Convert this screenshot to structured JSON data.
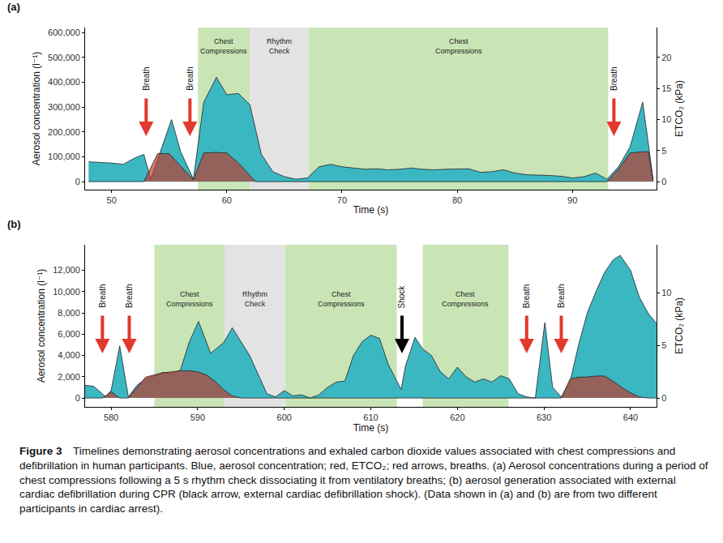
{
  "chart_data": [
    {
      "type": "area",
      "title": "(a)",
      "x_label": "Time (s)",
      "y_label": "Aerosol concentration (l⁻¹)",
      "y2_label": "ETCO₂ (kPa)",
      "xlim": [
        47.7,
        97.3
      ],
      "xticks": [
        50,
        60,
        70,
        80,
        90
      ],
      "ylim": [
        -32000,
        620000
      ],
      "yticks": [
        0,
        {
          "value": 100000,
          "label": "100,000"
        },
        {
          "value": 200000,
          "label": "200,000"
        },
        {
          "value": 300000,
          "label": "300,000"
        },
        {
          "value": 400000,
          "label": "400,000"
        },
        {
          "value": 500000,
          "label": "500,000"
        },
        {
          "value": 600000,
          "label": "600,000"
        }
      ],
      "y2lim": [
        -1.3,
        24.8
      ],
      "y2ticks": [
        0,
        5,
        10,
        15,
        20
      ],
      "grid": false,
      "series": [
        {
          "color": "#3bb7c2",
          "x": [
            48,
            50,
            51,
            52,
            52.8,
            53.4,
            55.2,
            56,
            57.1,
            58,
            59.1,
            60,
            61,
            62,
            63,
            64,
            65,
            66,
            67,
            68,
            69,
            70,
            71,
            72,
            73,
            74,
            75,
            76,
            77,
            78,
            79,
            80,
            81,
            82,
            83,
            84,
            85,
            86,
            87,
            88,
            89,
            90,
            91,
            92,
            93,
            94,
            95,
            96.1,
            96.6,
            97
          ],
          "values": [
            80000,
            75000,
            70000,
            95000,
            110000,
            10000,
            250000,
            120000,
            10000,
            320000,
            420000,
            350000,
            355000,
            310000,
            110000,
            40000,
            20000,
            10000,
            15000,
            60000,
            70000,
            60000,
            55000,
            50000,
            52000,
            48000,
            50000,
            55000,
            50000,
            48000,
            50000,
            50000,
            52000,
            38000,
            40000,
            48000,
            35000,
            28000,
            27000,
            25000,
            22000,
            15000,
            20000,
            35000,
            10000,
            60000,
            140000,
            320000,
            150000,
            10000
          ]
        },
        {
          "color": "#c0392b",
          "axis": "y2",
          "x": [
            48,
            52.8,
            54,
            55,
            56,
            57.1,
            58,
            59,
            60,
            61,
            62,
            62.5,
            93,
            94,
            95,
            96,
            96.6,
            97
          ],
          "values": [
            0,
            0,
            4.5,
            4.5,
            2.5,
            0.3,
            4.6,
            4.7,
            4.6,
            3,
            1,
            0,
            0,
            2,
            4.6,
            4.8,
            4.8,
            0
          ]
        }
      ],
      "annotations": [
        {
          "kind": "region",
          "x0": 57.5,
          "x1": 62,
          "text": "Chest Compressions",
          "color": "#c9e5b5"
        },
        {
          "kind": "region",
          "x0": 62,
          "x1": 67.1,
          "text": "Rhythm Check",
          "color": "#e3e3e3"
        },
        {
          "kind": "region",
          "x0": 67.1,
          "x1": 93.1,
          "text": "Chest Compressions",
          "color": "#c9e5b5"
        },
        {
          "kind": "arrow",
          "x": 53,
          "text": "Breath",
          "color": "#e2382e"
        },
        {
          "kind": "arrow",
          "x": 56.8,
          "text": "Breath",
          "color": "#e2382e"
        },
        {
          "kind": "arrow",
          "x": 93.6,
          "text": "Breath",
          "color": "#e2382e"
        }
      ]
    },
    {
      "type": "area",
      "title": "(b)",
      "x_label": "Time (s)",
      "y_label": "Aerosol concentration (l⁻¹)",
      "y2_label": "ETCO₂ (kPa)",
      "xlim": [
        577,
        643
      ],
      "xticks": [
        580,
        590,
        600,
        610,
        620,
        630,
        640
      ],
      "ylim": [
        -830,
        14400
      ],
      "yticks": [
        0,
        {
          "value": 2000,
          "label": "2,000"
        },
        {
          "value": 4000,
          "label": "4,000"
        },
        {
          "value": 6000,
          "label": "6,000"
        },
        {
          "value": 8000,
          "label": "8,000"
        },
        {
          "value": 10000,
          "label": "10,000"
        },
        {
          "value": 12000,
          "label": "12,000"
        }
      ],
      "y2lim": [
        -0.84,
        14.6
      ],
      "y2ticks": [
        0,
        5,
        10
      ],
      "grid": false,
      "series": [
        {
          "color": "#3bb7c2",
          "x": [
            577,
            578,
            579.4,
            580,
            581,
            582,
            583,
            584,
            585,
            586,
            587,
            588,
            589,
            590.1,
            591.5,
            593,
            594,
            596,
            598,
            599,
            600,
            601,
            602,
            603,
            604,
            605,
            606,
            607,
            608,
            609,
            610,
            611,
            612,
            613.5,
            614,
            615.1,
            616,
            617,
            618,
            619,
            620,
            621,
            622,
            623,
            624,
            625,
            626,
            627,
            628,
            629,
            630.1,
            631,
            632,
            633,
            634,
            635,
            636,
            637,
            638,
            638.8,
            640,
            641,
            642,
            643
          ],
          "values": [
            1200,
            1100,
            100,
            700,
            4900,
            100,
            1200,
            1800,
            2100,
            2400,
            2300,
            2600,
            5200,
            7200,
            4200,
            5200,
            6600,
            4000,
            400,
            100,
            700,
            200,
            300,
            0,
            300,
            1000,
            1500,
            1600,
            4000,
            5300,
            5900,
            5600,
            3200,
            800,
            3000,
            5700,
            4600,
            4000,
            2500,
            1800,
            2900,
            2000,
            1500,
            1800,
            1500,
            2100,
            1800,
            400,
            100,
            0,
            7100,
            1000,
            100,
            1500,
            5000,
            8000,
            10000,
            11800,
            13000,
            13400,
            12000,
            9500,
            8000,
            7000
          ]
        },
        {
          "color": "#c0392b",
          "axis": "y2",
          "x": [
            577,
            579,
            580,
            581,
            582,
            583,
            584,
            585,
            586,
            587,
            588,
            589,
            590,
            591,
            592,
            593,
            594,
            595,
            632,
            633,
            634,
            635,
            636,
            637,
            638,
            639,
            640,
            641,
            642,
            643
          ],
          "values": [
            0,
            0,
            0.6,
            0,
            0,
            1.0,
            2.0,
            2.2,
            2.4,
            2.5,
            2.6,
            2.6,
            2.5,
            2.2,
            1.6,
            0.8,
            0.2,
            0,
            0,
            1.8,
            2.0,
            2.0,
            2.1,
            2.1,
            1.6,
            1.0,
            0.5,
            0.1,
            0,
            0
          ]
        }
      ],
      "annotations": [
        {
          "kind": "region",
          "x0": 585,
          "x1": 593.1,
          "text": "Chest Compressions",
          "color": "#c9e5b5"
        },
        {
          "kind": "region",
          "x0": 593.1,
          "x1": 600.1,
          "text": "Rhythm Check",
          "color": "#e3e3e3"
        },
        {
          "kind": "region",
          "x0": 600.1,
          "x1": 613,
          "text": "Chest Compressions",
          "color": "#c9e5b5"
        },
        {
          "kind": "region",
          "x0": 616,
          "x1": 625.9,
          "text": "Chest Compressions",
          "color": "#c9e5b5"
        },
        {
          "kind": "arrow",
          "x": 579,
          "text": "Breath",
          "color": "#e2382e"
        },
        {
          "kind": "arrow",
          "x": 582.1,
          "text": "Breath",
          "color": "#e2382e"
        },
        {
          "kind": "arrow",
          "x": 613.6,
          "text": "Shock",
          "color": "#000000"
        },
        {
          "kind": "arrow",
          "x": 628,
          "text": "Breath",
          "color": "#e2382e"
        },
        {
          "kind": "arrow",
          "x": 632,
          "text": "Breath",
          "color": "#e2382e"
        }
      ]
    }
  ],
  "caption": {
    "label": "Figure 3",
    "text": "Timelines demonstrating aerosol concentrations and exhaled carbon dioxide values associated with chest compressions and defibrillation in human participants. Blue, aerosol concentration; red, ETCO₂; red arrows, breaths. (a) Aerosol concentrations during a period of chest compressions following a 5 s rhythm check dissociating it from ventilatory breaths; (b) aerosol generation associated with external cardiac defibrillation during CPR (black arrow, external cardiac defibrillation shock). (Data shown in (a) and (b) are from two different participants in cardiac arrest)."
  }
}
